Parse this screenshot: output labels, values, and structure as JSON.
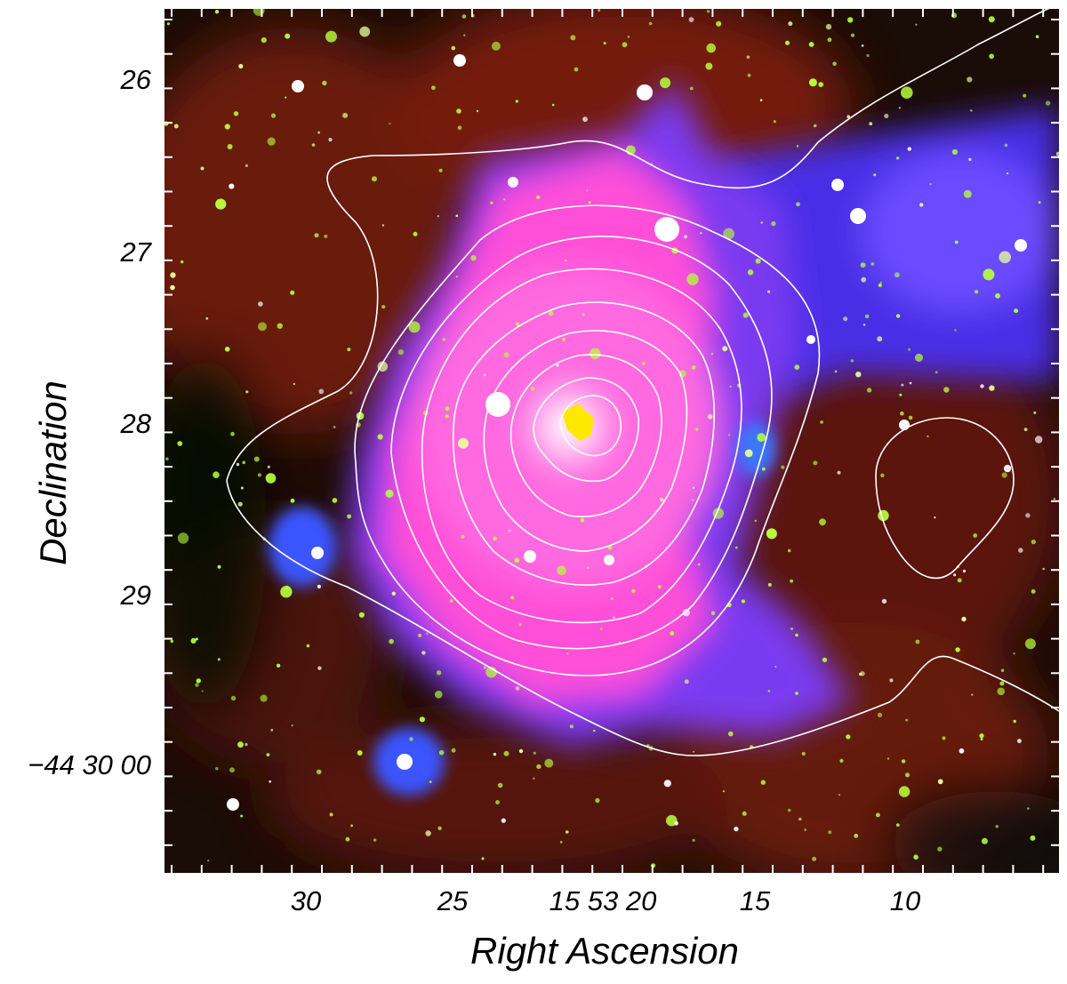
{
  "figure": {
    "xlabel": "Right Ascension",
    "ylabel": "Declination",
    "x_ticks": [
      "30",
      "25",
      "15 53 20",
      "15",
      "10"
    ],
    "y_ticks": [
      "26",
      "27",
      "28",
      "29",
      "−44 30 00"
    ],
    "colors": {
      "background_red": "#7a1a0e",
      "nebula_magenta": "#ff4fd8",
      "nebula_blue": "#5a3cff",
      "star_green": "#b6ff3a",
      "contour": "#ffffff"
    },
    "image_description": "three-color astronomical image with white radio contours"
  }
}
